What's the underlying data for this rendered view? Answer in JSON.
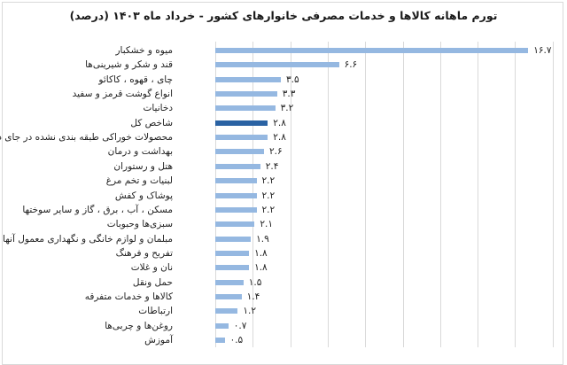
{
  "title": "تورم ماهانه کالاها و خدمات مصرفی خانوارهای کشور - خرداد ماه ۱۴۰۳ (درصد)",
  "colors": {
    "bar": "#95b8e1",
    "highlight": "#2a62a3",
    "grid": "#d9d9d9"
  },
  "chart_data": {
    "type": "bar",
    "orientation": "horizontal",
    "title": "تورم ماهانه کالاها و خدمات مصرفی خانوارهای کشور - خرداد ماه ۱۴۰۳ (درصد)",
    "xlabel": "",
    "ylabel": "",
    "xlim": [
      0,
      18
    ],
    "grid": true,
    "gridlines_at": [
      0,
      2,
      4,
      6,
      8,
      10,
      12,
      14,
      16,
      18
    ],
    "legend": "none",
    "categories": [
      "میوه و خشکبار",
      "قند و شکر و شیرینی‌ها",
      "چای ، قهوه ، کاکائو",
      "انواع گوشت قرمز و سفید",
      "دخانیات",
      "شاخص کل",
      "محصولات خوراکی طبقه بندی نشده در جای دیگر",
      "بهداشت و درمان",
      "هتل و رستوران",
      "لبنیات و تخم مرغ",
      "پوشاک و کفش",
      "مسکن ، آب ، برق ، گاز و سایر سوختها",
      "سبزی‌ها وحبوبات",
      "مبلمان و لوازم خانگی و نگهداری معمول آنها",
      "تفریح و فرهنگ",
      "نان و غلات",
      "حمل ونقل",
      "کالاها و خدمات متفرقه",
      "ارتباطات",
      "روغن‌ها و چربی‌ها",
      "آموزش"
    ],
    "values": [
      16.7,
      6.6,
      3.5,
      3.3,
      3.2,
      2.8,
      2.8,
      2.6,
      2.4,
      2.2,
      2.2,
      2.2,
      2.1,
      1.9,
      1.8,
      1.8,
      1.5,
      1.4,
      1.2,
      0.7,
      0.5
    ],
    "value_labels": [
      "۱۶.۷",
      "۶.۶",
      "۳.۵",
      "۳.۳",
      "۳.۲",
      "۲.۸",
      "۲.۸",
      "۲.۶",
      "۲.۴",
      "۲.۲",
      "۲.۲",
      "۲.۲",
      "۲.۱",
      "۱.۹",
      "۱.۸",
      "۱.۸",
      "۱.۵",
      "۱.۴",
      "۱.۲",
      "۰.۷",
      "۰.۵"
    ],
    "highlighted_index": 5
  }
}
